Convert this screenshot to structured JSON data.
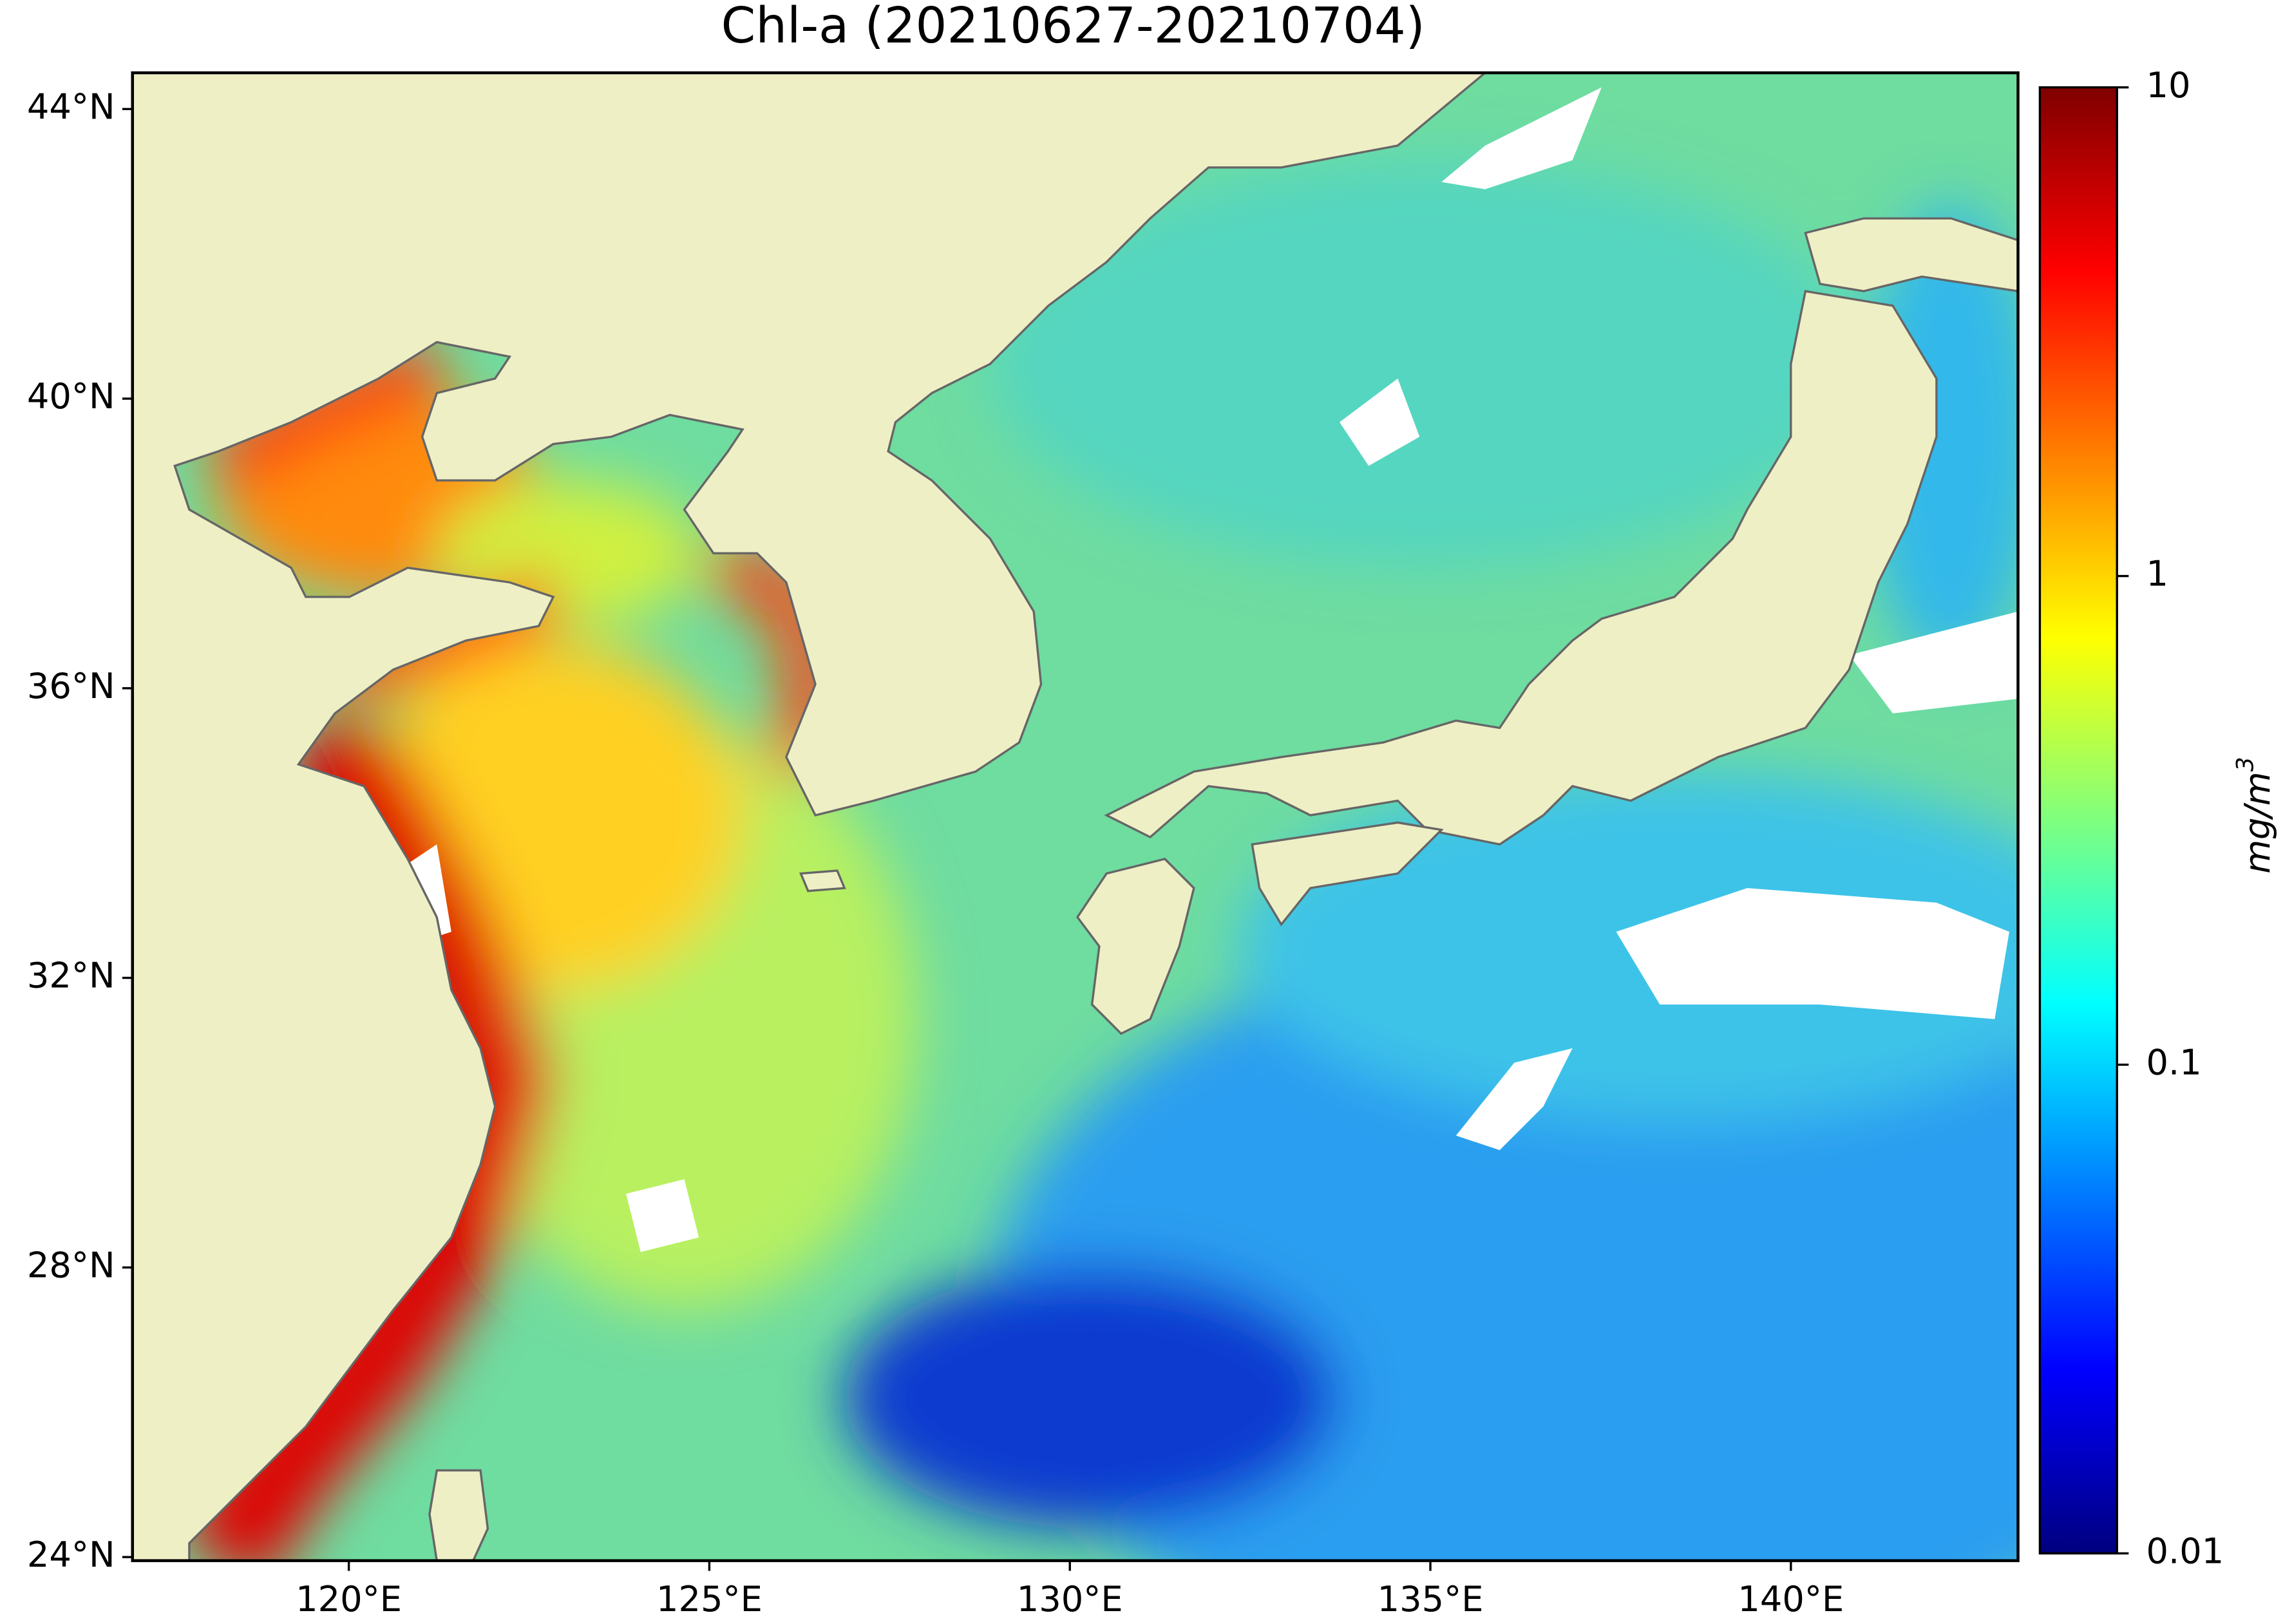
{
  "title": "Chl-a (20210627-20210704)",
  "map": {
    "xlim": [
      117,
      143.15
    ],
    "ylim": [
      23.95,
      44.5
    ],
    "xticks": [
      {
        "value": 120,
        "label": "120°E"
      },
      {
        "value": 125,
        "label": "125°E"
      },
      {
        "value": 130,
        "label": "130°E"
      },
      {
        "value": 135,
        "label": "135°E"
      },
      {
        "value": 140,
        "label": "140°E"
      }
    ],
    "yticks": [
      {
        "value": 24,
        "label": "24°N"
      },
      {
        "value": 28,
        "label": "28°N"
      },
      {
        "value": 32,
        "label": "32°N"
      },
      {
        "value": 36,
        "label": "36°N"
      },
      {
        "value": 40,
        "label": "40°N"
      },
      {
        "value": 44,
        "label": "44°N"
      }
    ],
    "land_color": "#efefc6"
  },
  "colorbar": {
    "label": "mg/m",
    "label_sup": "3",
    "lim": [
      0.01,
      10
    ],
    "ticks": [
      0.01,
      0.1,
      1,
      10
    ],
    "log": true,
    "colors": [
      "#00007f",
      "#0000ff",
      "#007fff",
      "#00ffff",
      "#7fff7f",
      "#ffff00",
      "#ff7f00",
      "#ff0000",
      "#7f0000"
    ]
  }
}
